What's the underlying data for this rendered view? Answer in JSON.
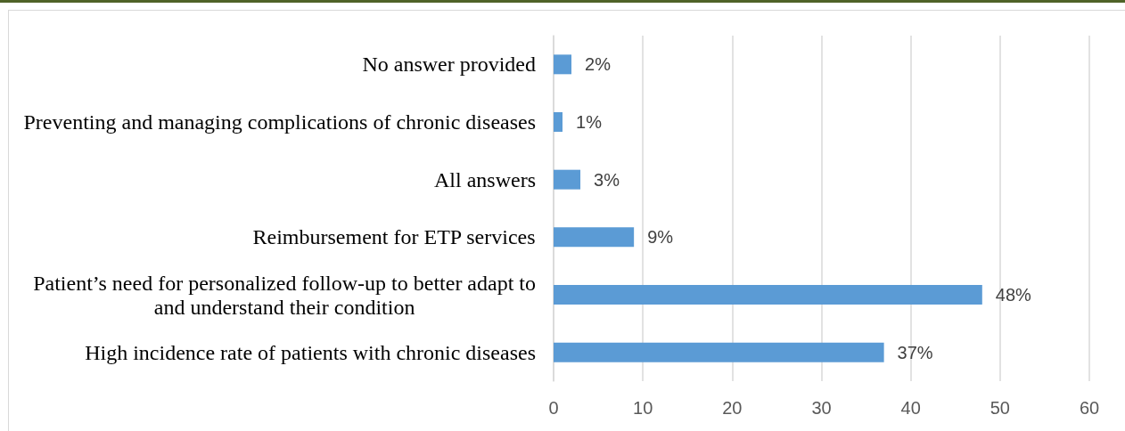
{
  "chart_data": {
    "type": "bar",
    "orientation": "horizontal",
    "categories": [
      "No answer provided",
      "Preventing and managing complications of chronic diseases",
      "All answers",
      "Reimbursement for ETP services",
      "Patient’s need for personalized follow-up to better adapt to and understand their condition",
      "High incidence rate of patients with chronic diseases"
    ],
    "values": [
      2,
      1,
      3,
      9,
      48,
      37
    ],
    "value_labels": [
      "2%",
      "1%",
      "3%",
      "9%",
      "48%",
      "37%"
    ],
    "color": "#5b9bd5",
    "xlim": [
      0,
      60
    ],
    "xticks": [
      0,
      10,
      20,
      30,
      40,
      50,
      60
    ],
    "grid": "x"
  }
}
